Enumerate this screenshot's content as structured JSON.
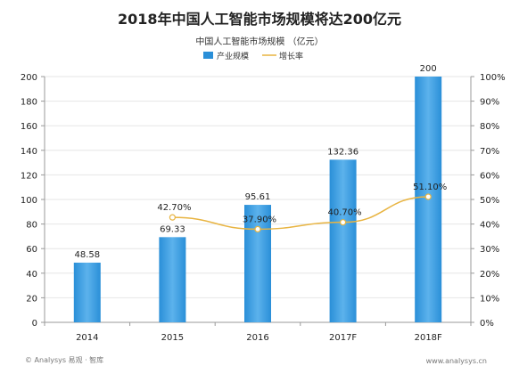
{
  "page": {
    "footer_left": "© Analysys 易观 · 智库",
    "footer_right": "www.analysys.cn"
  },
  "colors": {
    "bar": "#2a8fd8",
    "bar_light": "#5cb2ec",
    "line": "#e8b441",
    "marker": "#ffffff",
    "grid": "#e6e6e6",
    "axis": "#999999",
    "text": "#222222"
  },
  "chart_data": {
    "type": "bar",
    "title": "2018年中国人工智能市场规模将达200亿元",
    "subtitle": "中国人工智能市场规模 （亿元）",
    "categories": [
      "2014",
      "2015",
      "2016",
      "2017F",
      "2018F"
    ],
    "series": [
      {
        "name": "产业规模",
        "type": "bar",
        "axis": "left",
        "values": [
          48.58,
          69.33,
          95.61,
          132.36,
          200
        ],
        "labels": [
          "48.58",
          "69.33",
          "95.61",
          "132.36",
          "200"
        ]
      },
      {
        "name": "增长率",
        "type": "line",
        "axis": "right",
        "values": [
          null,
          42.7,
          37.9,
          40.7,
          51.1
        ],
        "labels": [
          "",
          "42.70%",
          "37.90%",
          "40.70%",
          "51.10%"
        ]
      }
    ],
    "ylim": [
      0,
      200
    ],
    "yticks": [
      0,
      20,
      40,
      60,
      80,
      100,
      120,
      140,
      160,
      180,
      200
    ],
    "y2lim": [
      0,
      100
    ],
    "y2ticks": [
      "0%",
      "10%",
      "20%",
      "30%",
      "40%",
      "50%",
      "60%",
      "70%",
      "80%",
      "90%",
      "100%"
    ],
    "legend": "top-center",
    "grid": true
  }
}
